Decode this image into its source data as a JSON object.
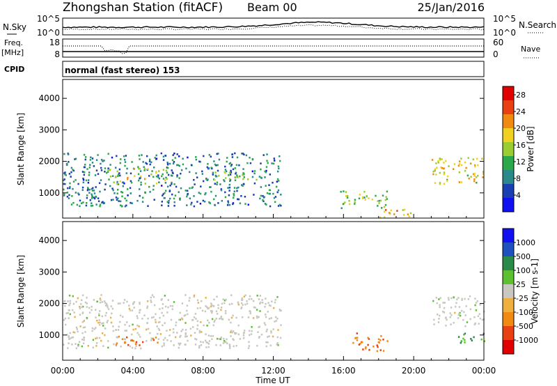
{
  "header": {
    "station": "Zhongshan Station (fitACF)",
    "beam": "Beam 00",
    "date": "25/Jan/2016"
  },
  "noise_panel": {
    "left_label": "N.Sky",
    "right_label": "N.Search",
    "ticks_left": [
      "10^5",
      "10^0"
    ],
    "ticks_right": [
      "10^5",
      "10^0"
    ]
  },
  "freq_panel": {
    "left_label_top": "Freq.",
    "left_label_bottom": "[MHz]",
    "right_label": "Nave",
    "ticks_left": [
      "18",
      "8"
    ],
    "ticks_right": [
      "60",
      "0"
    ]
  },
  "cpid": {
    "label": "CPID",
    "text": "normal (fast stereo) 153"
  },
  "colors": {
    "power_scale": [
      "#1010f0",
      "#1a3fb0",
      "#2a8a8a",
      "#2aa84a",
      "#9acd32",
      "#f0d020",
      "#f08a10",
      "#e84010",
      "#e00000"
    ],
    "velocity_scale": [
      "#e00000",
      "#e84010",
      "#f08a10",
      "#f0b040",
      "#c8c8c0",
      "#5cc030",
      "#2a8a4a",
      "#2050c0",
      "#1010f0"
    ]
  },
  "chart_data": [
    {
      "type": "heatmap",
      "panel": "power",
      "xlabel": "Time UT",
      "ylabel": "Slant Range [km]",
      "xlim": [
        "00:00",
        "24:00"
      ],
      "ylim": [
        200,
        4600
      ],
      "x_ticks": [
        "00:00",
        "04:00",
        "08:00",
        "12:00",
        "16:00",
        "20:00",
        "00:00"
      ],
      "y_ticks": [
        "1000",
        "2000",
        "3000",
        "4000"
      ],
      "colorbar": {
        "label": "Power [dB]",
        "ticks": [
          "4",
          "8",
          "12",
          "16",
          "20",
          "24",
          "28"
        ],
        "range": [
          0,
          30
        ]
      },
      "echo_regions": [
        {
          "t_start": 0.0,
          "t_end": 12.4,
          "r_start": 600,
          "r_end": 2300,
          "level_db": 8
        },
        {
          "t_start": 2.5,
          "t_end": 6.0,
          "r_start": 1300,
          "r_end": 1800,
          "level_db": 16
        },
        {
          "t_start": 8.5,
          "t_end": 11.0,
          "r_start": 1400,
          "r_end": 1700,
          "level_db": 14
        },
        {
          "t_start": 15.8,
          "t_end": 18.5,
          "r_start": 500,
          "r_end": 1100,
          "level_db": 14
        },
        {
          "t_start": 18.0,
          "t_end": 20.0,
          "r_start": 200,
          "r_end": 500,
          "level_db": 20
        },
        {
          "t_start": 21.0,
          "t_end": 24.0,
          "r_start": 1300,
          "r_end": 2200,
          "level_db": 18
        }
      ]
    },
    {
      "type": "heatmap",
      "panel": "velocity",
      "xlabel": "Time UT",
      "ylabel": "Slant Range [km]",
      "xlim": [
        "00:00",
        "24:00"
      ],
      "ylim": [
        200,
        4600
      ],
      "x_ticks": [
        "00:00",
        "04:00",
        "08:00",
        "12:00",
        "16:00",
        "20:00",
        "00:00"
      ],
      "y_ticks": [
        "1000",
        "2000",
        "3000",
        "4000"
      ],
      "colorbar": {
        "label": "Velocity [m s-1]",
        "ticks": [
          "1000",
          "500",
          "100",
          "25",
          "-25",
          "-100",
          "-500",
          "-1000"
        ],
        "range": [
          -1000,
          1000
        ]
      },
      "echo_regions": [
        {
          "t_start": 0.0,
          "t_end": 12.4,
          "r_start": 600,
          "r_end": 2300,
          "velocity": 0
        },
        {
          "t_start": 3.0,
          "t_end": 5.5,
          "r_start": 700,
          "r_end": 1000,
          "velocity": -100
        },
        {
          "t_start": 16.5,
          "t_end": 18.5,
          "r_start": 500,
          "r_end": 1100,
          "velocity": -300
        },
        {
          "t_start": 21.0,
          "t_end": 24.0,
          "r_start": 1300,
          "r_end": 2300,
          "velocity": 0
        },
        {
          "t_start": 22.5,
          "t_end": 24.0,
          "r_start": 700,
          "r_end": 1100,
          "velocity": 100
        }
      ]
    }
  ]
}
